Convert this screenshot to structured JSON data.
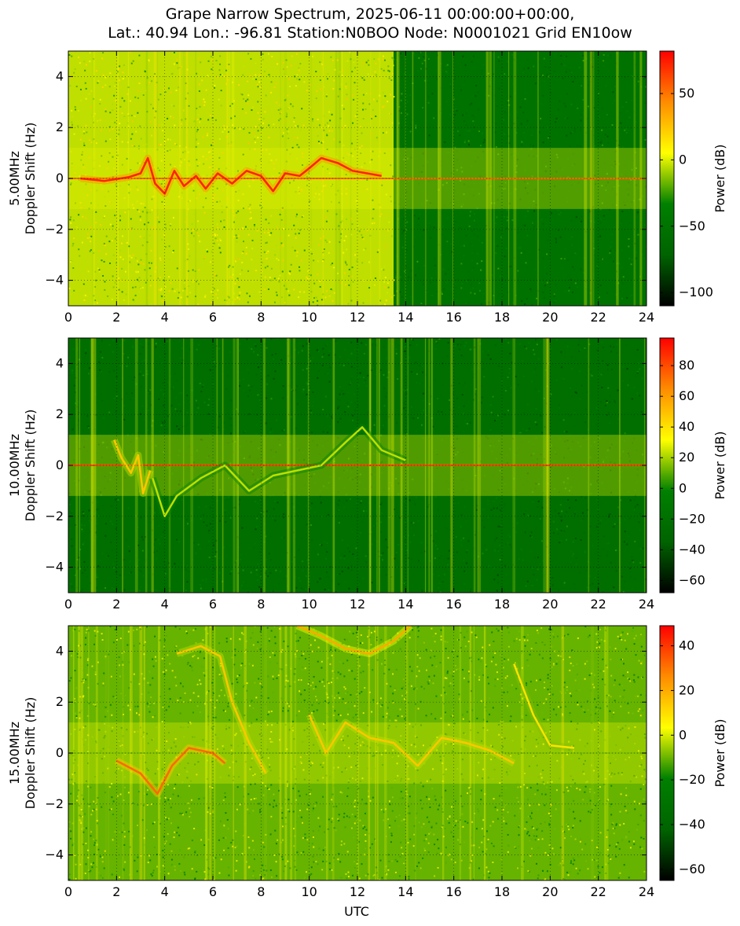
{
  "figure": {
    "title_line1": "Grape Narrow Spectrum, 2025-06-11 00:00:00+00:00,",
    "title_line2": "Lat.: 40.94 Lon.: -96.81 Station:N0BOO Node: N0001021 Grid EN10ow",
    "xlabel": "UTC"
  },
  "colormap": [
    "#000000",
    "#006400",
    "#008000",
    "#ffff00",
    "#ff8c00",
    "#ff0000"
  ],
  "chart_data": [
    {
      "type": "heatmap",
      "panel": "5.00MHz",
      "ylabel_line1": "5.00MHz",
      "ylabel_line2": "Doppler Shift (Hz)",
      "xlim": [
        0,
        24
      ],
      "ylim": [
        -5,
        5
      ],
      "xticks": [
        0,
        2,
        4,
        6,
        8,
        10,
        12,
        14,
        16,
        18,
        20,
        22,
        24
      ],
      "yticks": [
        -4,
        -2,
        0,
        2,
        4
      ],
      "grid": true,
      "colorbar": {
        "label": "Power (dB)",
        "range": [
          -110,
          82
        ],
        "ticks": [
          -100,
          -50,
          0,
          50
        ]
      },
      "background_regions": [
        {
          "from": 0,
          "to": 13.5,
          "level": 0.55,
          "note": ""
        },
        {
          "from": 13.5,
          "to": 24,
          "level": 0.3
        }
      ],
      "carrier": {
        "doppler_hz": 0,
        "from": 0,
        "to": 24,
        "level": 0.85
      },
      "traces": [
        {
          "level": 0.95,
          "points": [
            [
              0.5,
              0
            ],
            [
              1.5,
              -0.1
            ],
            [
              2.5,
              0.05
            ],
            [
              3,
              0.2
            ],
            [
              3.3,
              0.8
            ],
            [
              3.6,
              -0.2
            ],
            [
              4,
              -0.6
            ],
            [
              4.4,
              0.3
            ],
            [
              4.8,
              -0.3
            ],
            [
              5.3,
              0.1
            ],
            [
              5.7,
              -0.4
            ],
            [
              6.2,
              0.2
            ],
            [
              6.8,
              -0.2
            ],
            [
              7.4,
              0.3
            ],
            [
              8,
              0.1
            ],
            [
              8.5,
              -0.5
            ],
            [
              9,
              0.2
            ],
            [
              9.6,
              0.1
            ],
            [
              10,
              0.4
            ],
            [
              10.5,
              0.8
            ],
            [
              11.2,
              0.6
            ],
            [
              11.8,
              0.3
            ],
            [
              12.4,
              0.2
            ],
            [
              13,
              0.1
            ]
          ]
        }
      ]
    },
    {
      "type": "heatmap",
      "panel": "10.00MHz",
      "ylabel_line1": "10.00MHz",
      "ylabel_line2": "Doppler Shift (Hz)",
      "xlim": [
        0,
        24
      ],
      "ylim": [
        -5,
        5
      ],
      "xticks": [
        0,
        2,
        4,
        6,
        8,
        10,
        12,
        14,
        16,
        18,
        20,
        22,
        24
      ],
      "yticks": [
        -4,
        -2,
        0,
        2,
        4
      ],
      "grid": true,
      "colorbar": {
        "label": "Power (dB)",
        "range": [
          -68,
          98
        ],
        "ticks": [
          -60,
          -40,
          -20,
          0,
          20,
          40,
          60,
          80
        ]
      },
      "background_regions": [
        {
          "from": 0,
          "to": 24,
          "level": 0.28
        }
      ],
      "carrier": {
        "doppler_hz": 0,
        "from": 0,
        "to": 24,
        "level": 0.9
      },
      "traces": [
        {
          "level": 0.7,
          "points": [
            [
              1.9,
              1
            ],
            [
              2.2,
              0.3
            ],
            [
              2.6,
              -0.3
            ],
            [
              2.9,
              0.4
            ],
            [
              3.1,
              -1.1
            ],
            [
              3.4,
              -0.2
            ]
          ]
        },
        {
          "level": 0.55,
          "points": [
            [
              3.5,
              -0.5
            ],
            [
              4,
              -2
            ],
            [
              4.5,
              -1.2
            ],
            [
              5.5,
              -0.5
            ],
            [
              6.5,
              0
            ],
            [
              7.5,
              -1
            ],
            [
              8.5,
              -0.4
            ],
            [
              9.5,
              -0.2
            ],
            [
              10.5,
              0
            ],
            [
              11.5,
              0.9
            ],
            [
              12.2,
              1.5
            ],
            [
              13,
              0.6
            ],
            [
              14,
              0.2
            ]
          ]
        }
      ]
    },
    {
      "type": "heatmap",
      "panel": "15.00MHz",
      "ylabel_line1": "15.00MHz",
      "ylabel_line2": "Doppler Shift (Hz)",
      "xlim": [
        0,
        24
      ],
      "ylim": [
        -5,
        5
      ],
      "xticks": [
        0,
        2,
        4,
        6,
        8,
        10,
        12,
        14,
        16,
        18,
        20,
        22,
        24
      ],
      "yticks": [
        -4,
        -2,
        0,
        2,
        4
      ],
      "grid": true,
      "colorbar": {
        "label": "Power (dB)",
        "range": [
          -65,
          49
        ],
        "ticks": [
          -60,
          -40,
          -20,
          0,
          20,
          40
        ]
      },
      "background_regions": [
        {
          "from": 0,
          "to": 24,
          "level": 0.48
        }
      ],
      "carrier": {
        "doppler_hz": 0,
        "from": 0,
        "to": 24,
        "level": 0.5
      },
      "traces": [
        {
          "level": 0.85,
          "points": [
            [
              2,
              -0.3
            ],
            [
              3,
              -0.8
            ],
            [
              3.7,
              -1.6
            ],
            [
              4.3,
              -0.5
            ],
            [
              5,
              0.2
            ],
            [
              6,
              0
            ],
            [
              6.5,
              -0.4
            ]
          ]
        },
        {
          "level": 0.7,
          "points": [
            [
              4.5,
              3.9
            ],
            [
              5.5,
              4.2
            ],
            [
              6.3,
              3.8
            ],
            [
              6.8,
              2
            ],
            [
              7.5,
              0.4
            ],
            [
              8.2,
              -0.8
            ]
          ]
        },
        {
          "level": 0.75,
          "points": [
            [
              9.5,
              5
            ],
            [
              10.5,
              4.6
            ],
            [
              11.5,
              4.1
            ],
            [
              12.5,
              3.9
            ],
            [
              13.5,
              4.4
            ],
            [
              14.2,
              5
            ]
          ]
        },
        {
          "level": 0.7,
          "points": [
            [
              10,
              1.5
            ],
            [
              10.7,
              0
            ],
            [
              11.5,
              1.2
            ],
            [
              12.5,
              0.6
            ],
            [
              13.5,
              0.4
            ],
            [
              14.5,
              -0.5
            ],
            [
              15.5,
              0.6
            ],
            [
              16.5,
              0.4
            ],
            [
              17.5,
              0.1
            ],
            [
              18.5,
              -0.4
            ]
          ]
        },
        {
          "level": 0.65,
          "points": [
            [
              18.5,
              3.5
            ],
            [
              19.3,
              1.5
            ],
            [
              20,
              0.3
            ],
            [
              21,
              0.2
            ]
          ]
        }
      ]
    }
  ]
}
